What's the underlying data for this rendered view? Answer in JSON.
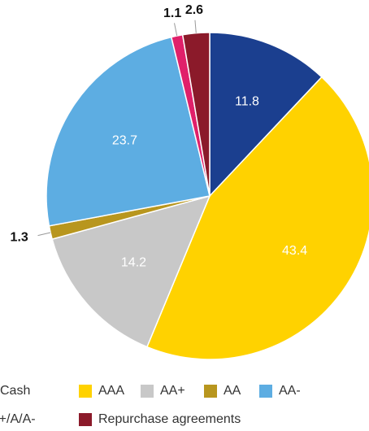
{
  "chart_data": {
    "type": "pie",
    "categories": [
      "Cash",
      "AAA",
      "AA+",
      "AA",
      "AA-",
      "A+/A/A-",
      "Repurchase agreements"
    ],
    "values": [
      11.8,
      43.4,
      14.2,
      1.3,
      23.7,
      1.1,
      2.6
    ],
    "colors": [
      "#1b3f8f",
      "#ffd200",
      "#c8c8c8",
      "#b8961e",
      "#5dade2",
      "#e0206a",
      "#8b1a2a"
    ]
  }
}
